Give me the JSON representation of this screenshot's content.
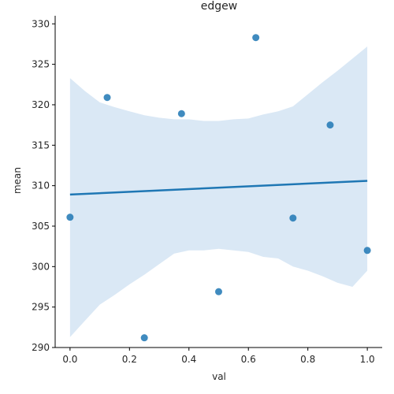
{
  "chart_data": {
    "type": "scatter",
    "title": "edgew",
    "xlabel": "val",
    "ylabel": "mean",
    "xlim": [
      -0.05,
      1.05
    ],
    "ylim": [
      290,
      331
    ],
    "x_ticks": [
      "0.0",
      "0.2",
      "0.4",
      "0.6",
      "0.8",
      "1.0"
    ],
    "y_ticks": [
      "290",
      "295",
      "300",
      "305",
      "310",
      "315",
      "320",
      "325",
      "330"
    ],
    "x_tick_values": [
      0.0,
      0.2,
      0.4,
      0.6,
      0.8,
      1.0
    ],
    "y_tick_values": [
      290,
      295,
      300,
      305,
      310,
      315,
      320,
      325,
      330
    ],
    "points": [
      {
        "x": 0.0,
        "y": 306.1
      },
      {
        "x": 0.125,
        "y": 320.9
      },
      {
        "x": 0.25,
        "y": 291.2
      },
      {
        "x": 0.375,
        "y": 318.9
      },
      {
        "x": 0.5,
        "y": 296.9
      },
      {
        "x": 0.625,
        "y": 328.3
      },
      {
        "x": 0.75,
        "y": 306.0
      },
      {
        "x": 0.875,
        "y": 317.5
      },
      {
        "x": 1.0,
        "y": 302.0
      }
    ],
    "regression_line": {
      "x": [
        0.0,
        1.0
      ],
      "y": [
        308.9,
        310.6
      ]
    },
    "confidence_band": [
      {
        "x": 0.0,
        "lower": 291.3,
        "upper": 323.3
      },
      {
        "x": 0.05,
        "lower": 293.3,
        "upper": 321.7
      },
      {
        "x": 0.1,
        "lower": 295.3,
        "upper": 320.3
      },
      {
        "x": 0.15,
        "lower": 296.5,
        "upper": 319.7
      },
      {
        "x": 0.2,
        "lower": 297.8,
        "upper": 319.2
      },
      {
        "x": 0.25,
        "lower": 299.0,
        "upper": 318.7
      },
      {
        "x": 0.3,
        "lower": 300.3,
        "upper": 318.4
      },
      {
        "x": 0.35,
        "lower": 301.6,
        "upper": 318.2
      },
      {
        "x": 0.4,
        "lower": 302.0,
        "upper": 318.2
      },
      {
        "x": 0.45,
        "lower": 302.0,
        "upper": 318.0
      },
      {
        "x": 0.5,
        "lower": 302.2,
        "upper": 318.0
      },
      {
        "x": 0.55,
        "lower": 302.0,
        "upper": 318.2
      },
      {
        "x": 0.6,
        "lower": 301.8,
        "upper": 318.3
      },
      {
        "x": 0.65,
        "lower": 301.2,
        "upper": 318.8
      },
      {
        "x": 0.7,
        "lower": 301.0,
        "upper": 319.2
      },
      {
        "x": 0.75,
        "lower": 300.0,
        "upper": 319.8
      },
      {
        "x": 0.8,
        "lower": 299.5,
        "upper": 321.3
      },
      {
        "x": 0.85,
        "lower": 298.8,
        "upper": 322.8
      },
      {
        "x": 0.9,
        "lower": 298.0,
        "upper": 324.2
      },
      {
        "x": 0.95,
        "lower": 297.5,
        "upper": 325.7
      },
      {
        "x": 1.0,
        "lower": 299.5,
        "upper": 327.2
      }
    ],
    "grid": false,
    "colors": {
      "line": "#1f77b4",
      "point": "#1f77b4",
      "band": "#c6dbef"
    }
  }
}
